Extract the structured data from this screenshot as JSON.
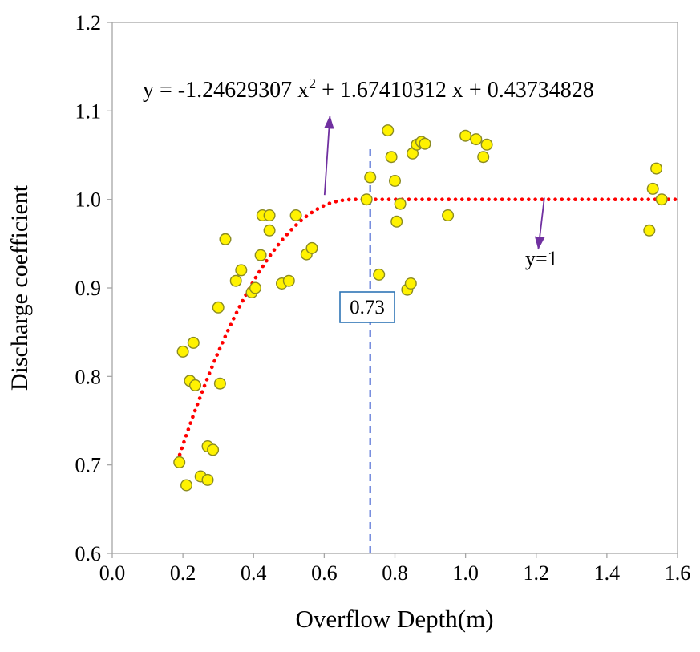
{
  "chart_data": {
    "type": "scatter",
    "title": "",
    "xlabel": "Overflow Depth(m)",
    "ylabel": "Discharge coefficient",
    "xlim": [
      0.0,
      1.6
    ],
    "ylim": [
      0.6,
      1.2
    ],
    "xticks": [
      0.0,
      0.2,
      0.4,
      0.6,
      0.8,
      1.0,
      1.2,
      1.4,
      1.6
    ],
    "xtick_labels": [
      "0.0",
      "0.2",
      "0.4",
      "0.6",
      "0.8",
      "1.0",
      "1.2",
      "1.4",
      "1.6"
    ],
    "yticks": [
      0.6,
      0.7,
      0.8,
      0.9,
      1.0,
      1.1,
      1.2
    ],
    "ytick_labels": [
      "0.6",
      "0.7",
      "0.8",
      "0.9",
      "1.0",
      "1.1",
      "1.2"
    ],
    "grid": false,
    "legend": "none",
    "frame_color": "#A6A6A6",
    "series": [
      {
        "name": "discharge-coefficient-points",
        "type": "scatter",
        "marker_fill": "#FFF200",
        "marker_edge": "#8A8A22",
        "points": [
          [
            0.19,
            0.703
          ],
          [
            0.21,
            0.677
          ],
          [
            0.25,
            0.687
          ],
          [
            0.27,
            0.683
          ],
          [
            0.27,
            0.721
          ],
          [
            0.285,
            0.717
          ],
          [
            0.22,
            0.795
          ],
          [
            0.235,
            0.79
          ],
          [
            0.305,
            0.792
          ],
          [
            0.2,
            0.828
          ],
          [
            0.23,
            0.838
          ],
          [
            0.3,
            0.878
          ],
          [
            0.32,
            0.955
          ],
          [
            0.35,
            0.908
          ],
          [
            0.365,
            0.92
          ],
          [
            0.395,
            0.895
          ],
          [
            0.405,
            0.9
          ],
          [
            0.42,
            0.937
          ],
          [
            0.425,
            0.982
          ],
          [
            0.445,
            0.982
          ],
          [
            0.445,
            0.965
          ],
          [
            0.48,
            0.905
          ],
          [
            0.5,
            0.908
          ],
          [
            0.52,
            0.982
          ],
          [
            0.55,
            0.938
          ],
          [
            0.565,
            0.945
          ],
          [
            0.72,
            1.0
          ],
          [
            0.73,
            1.025
          ],
          [
            0.755,
            0.915
          ],
          [
            0.78,
            1.078
          ],
          [
            0.79,
            1.048
          ],
          [
            0.8,
            1.021
          ],
          [
            0.805,
            0.975
          ],
          [
            0.815,
            0.995
          ],
          [
            0.835,
            0.898
          ],
          [
            0.845,
            0.905
          ],
          [
            0.85,
            1.052
          ],
          [
            0.862,
            1.062
          ],
          [
            0.875,
            1.065
          ],
          [
            0.885,
            1.063
          ],
          [
            0.95,
            0.982
          ],
          [
            1.0,
            1.072
          ],
          [
            1.03,
            1.068
          ],
          [
            1.05,
            1.048
          ],
          [
            1.06,
            1.062
          ],
          [
            1.52,
            0.965
          ],
          [
            1.53,
            1.012
          ],
          [
            1.54,
            1.035
          ],
          [
            1.555,
            1.0
          ]
        ]
      }
    ],
    "fit_curve": {
      "type": "quadratic-capped",
      "a": -1.24629307,
      "b": 1.67410312,
      "c": 0.43734828,
      "cap_y": 1.0,
      "x_start": 0.185,
      "x_end": 1.6,
      "color": "#FF0000",
      "style": "dotted"
    },
    "vline": {
      "x": 0.73,
      "y_top": 1.06,
      "label": "0.73",
      "color": "#3355CC",
      "box_color": "#2E75B6",
      "style": "dashed"
    },
    "equation_label": {
      "part1": "y = -1.24629307 x",
      "sup": "2",
      "part2": " + 1.67410312 x + 0.43734828"
    },
    "hline_label": "y=1",
    "annotation_color": "#7030A0",
    "annotations": [
      {
        "id": "equation-arrow",
        "from_xy": [
          0.601,
          1.005
        ],
        "to_xy": [
          0.616,
          1.094
        ]
      },
      {
        "id": "y-equals-1-arrow",
        "from_xy": [
          1.223,
          1.002
        ],
        "to_xy": [
          1.206,
          0.944
        ]
      }
    ]
  }
}
